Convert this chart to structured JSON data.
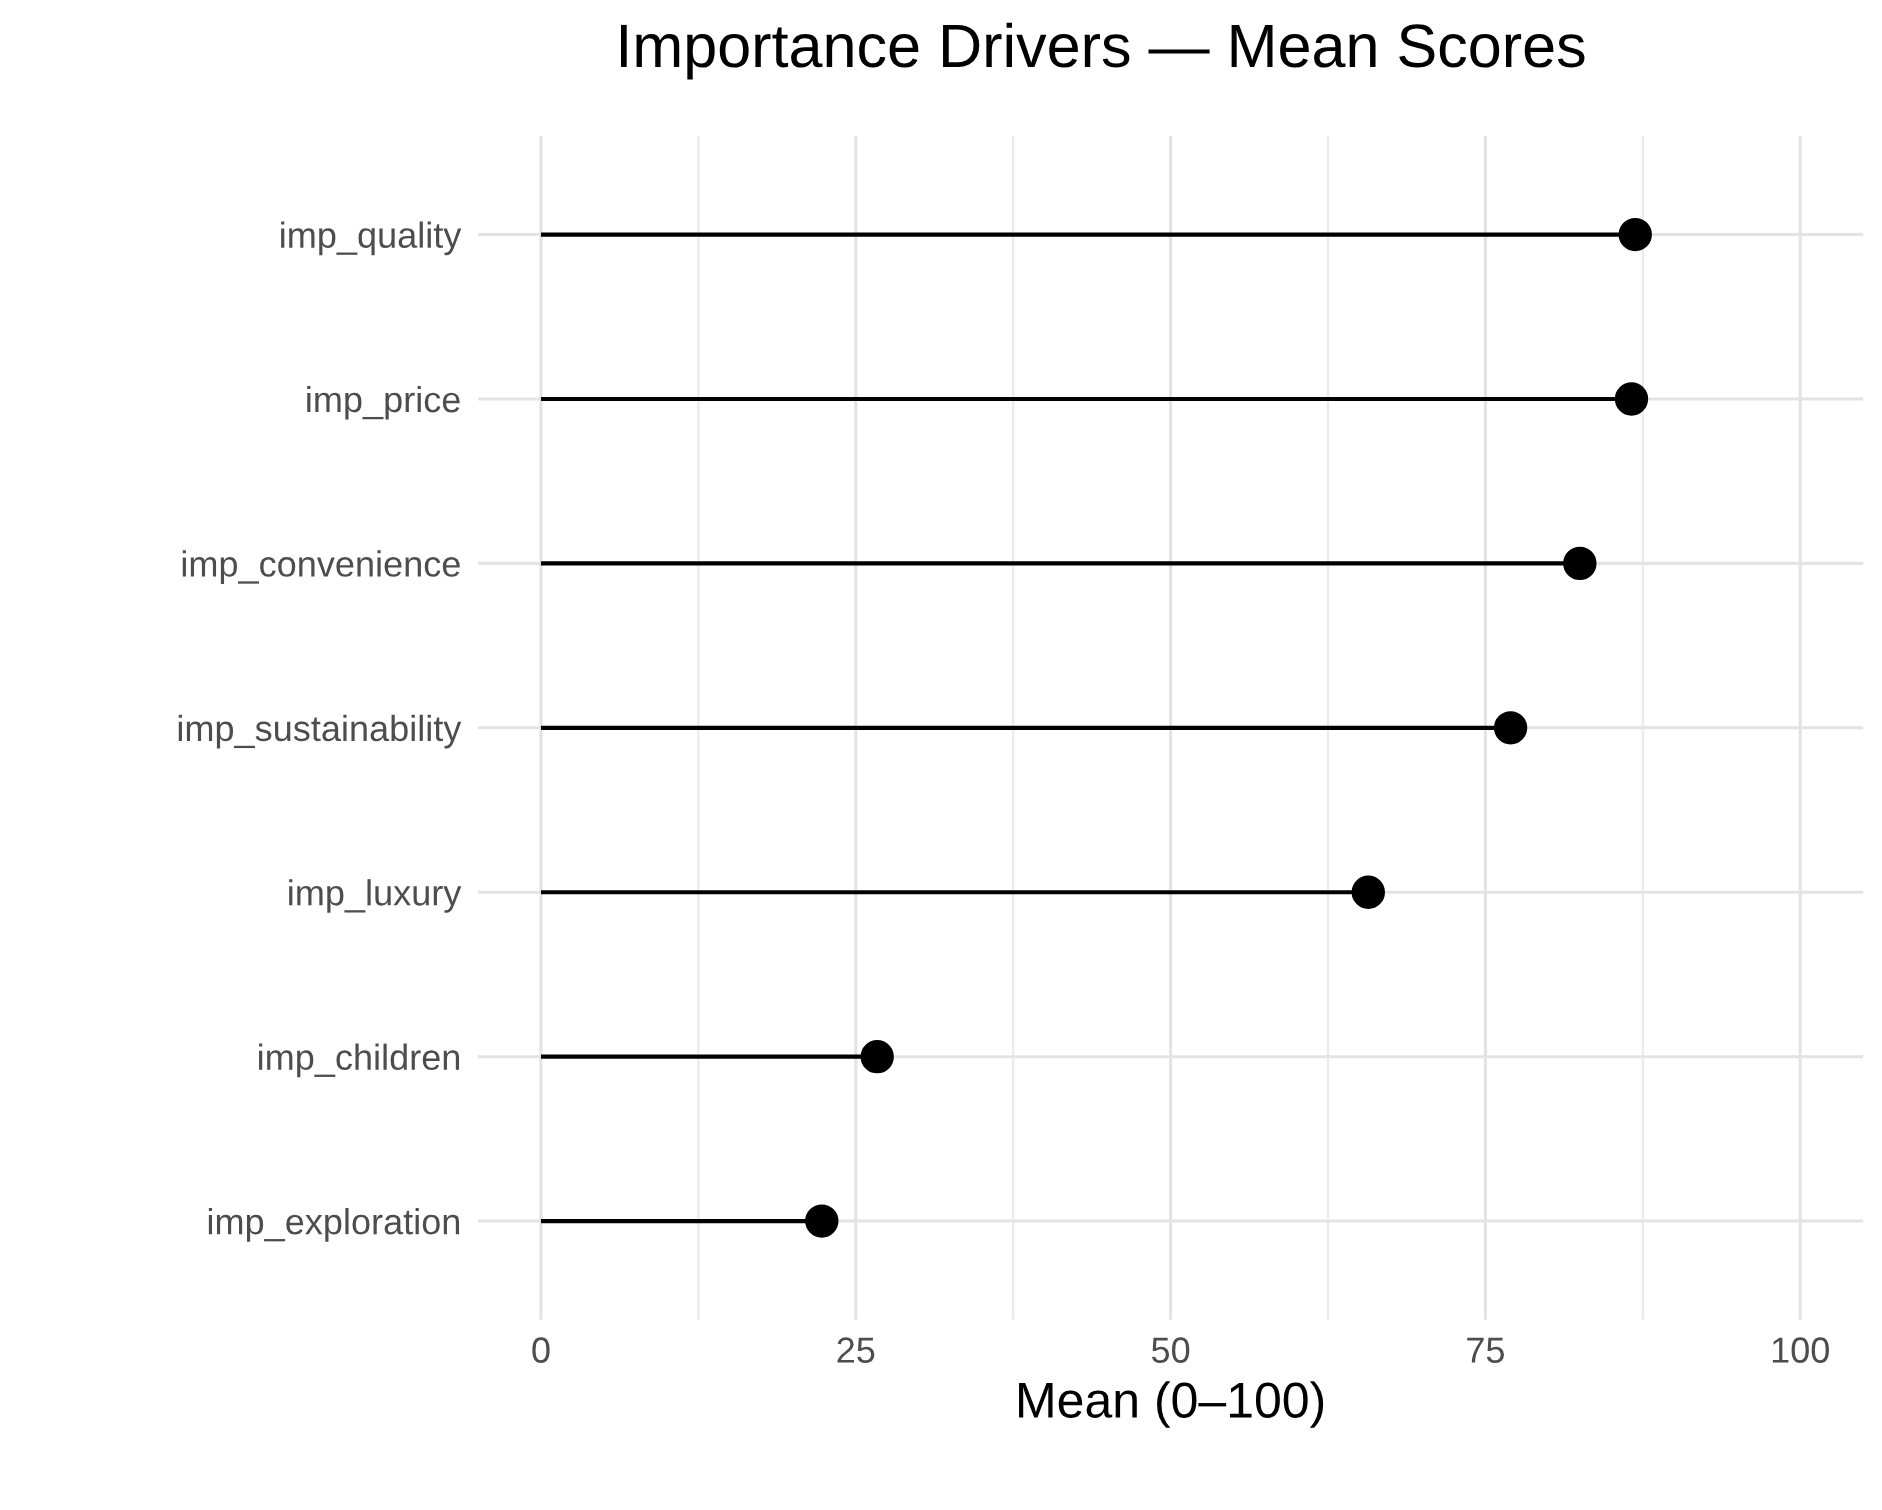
{
  "chart_data": {
    "type": "lollipop",
    "orientation": "horizontal",
    "title": "Importance Drivers — Mean Scores",
    "xlabel": "Mean (0–100)",
    "categories": [
      "imp_quality",
      "imp_price",
      "imp_convenience",
      "imp_sustainability",
      "imp_luxury",
      "imp_children",
      "imp_exploration"
    ],
    "values": [
      86.9,
      86.6,
      82.5,
      77.0,
      65.7,
      26.7,
      22.3
    ],
    "color": "#000000",
    "marker": "circle",
    "xlim": [
      -5,
      105
    ],
    "xticks": [
      0,
      25,
      50,
      75,
      100
    ],
    "grid": true
  }
}
